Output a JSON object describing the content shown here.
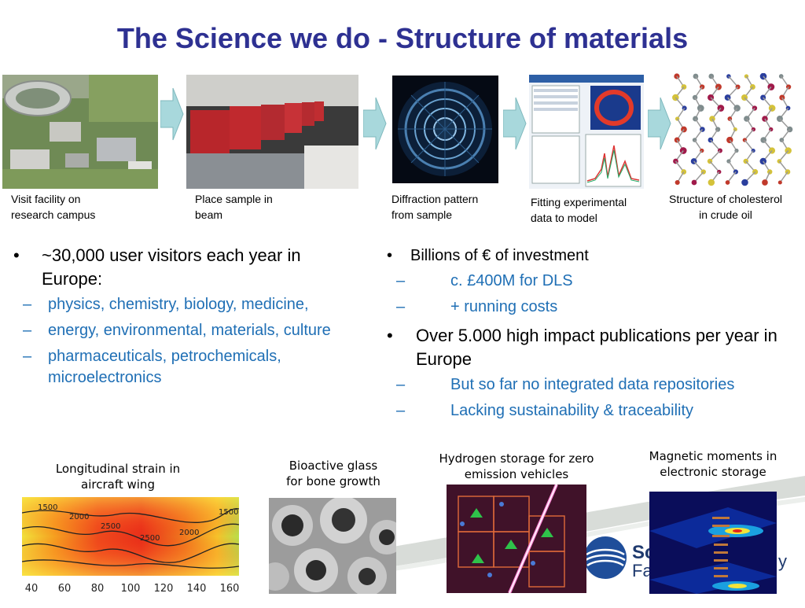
{
  "title": "The Science we do  - Structure of materials",
  "top_steps": [
    {
      "caption_line1": "Visit facility on",
      "caption_line2": "research campus"
    },
    {
      "caption_line1": "Place sample in",
      "caption_line2": "beam"
    },
    {
      "caption_line1": "Diffraction pattern",
      "caption_line2": "from sample"
    },
    {
      "caption_line1": "Fitting experimental",
      "caption_line2": "data to model"
    },
    {
      "caption_line1": "Structure of cholesterol",
      "caption_line2": "in crude oil"
    }
  ],
  "left_bullets": {
    "main": "~30,000 user visitors each year in Europe:",
    "subs": [
      "physics, chemistry, biology, medicine,",
      "energy, environmental, materials, culture",
      "pharmaceuticals, petrochemicals, microelectronics"
    ]
  },
  "right_bullets": [
    {
      "main": "Billions of € of investment",
      "subs": [
        "c. £400M for DLS",
        "+ running costs"
      ]
    },
    {
      "main": "Over 5.000 high impact publications per year in Europe",
      "subs": [
        "But so far no integrated data repositories",
        "Lacking sustainability & traceability"
      ]
    }
  ],
  "bottom_examples": [
    {
      "line1": "Longitudinal strain in",
      "line2": "aircraft wing"
    },
    {
      "line1": "Bioactive glass",
      "line2": "for bone growth"
    },
    {
      "line1": "Hydrogen storage for zero",
      "line2": "emission vehicles"
    },
    {
      "line1": "Magnetic moments in",
      "line2": "electronic storage"
    }
  ],
  "strain_axis_ticks": [
    "40",
    "60",
    "80",
    "100",
    "120",
    "140",
    "160"
  ],
  "strain_contour_labels": [
    "1500",
    "2000",
    "2500",
    "2500",
    "2000",
    "1500"
  ],
  "logo_text_line1": "Sc",
  "logo_text_line2": "Fac",
  "logo_text_suffix": "y",
  "colors": {
    "title": "#2e3192",
    "sub_bullet": "#1f6fb5",
    "arrow": "#a8d8dc"
  }
}
